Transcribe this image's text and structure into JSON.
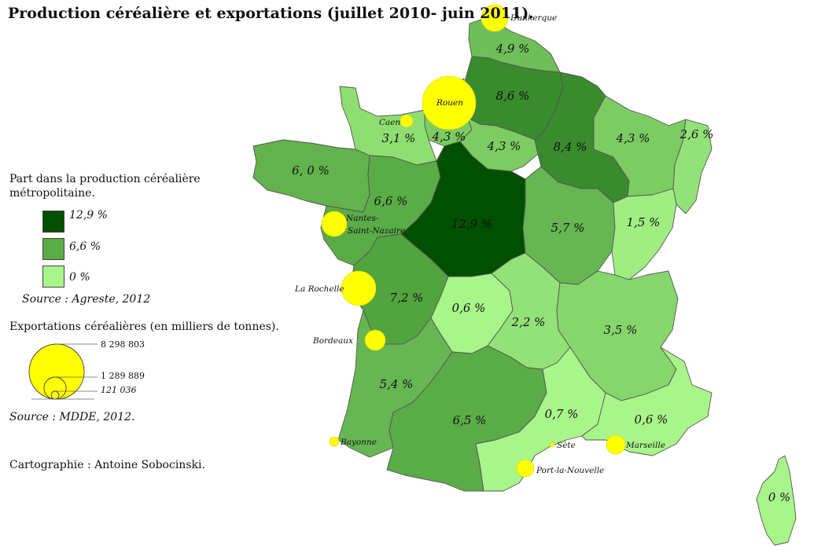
{
  "title": "Production céréalière et exportations (juillet 2010- juin 2011).",
  "legend": {
    "production_title_line1": "Part dans la production céréalière",
    "production_title_line2": "métropolitaine.",
    "classes": [
      {
        "label": "12,9 %",
        "color": "#005000"
      },
      {
        "label": "6,6 %",
        "color": "#5aac46"
      },
      {
        "label": "0 %",
        "color": "#a8f58a"
      }
    ],
    "production_source": "Source : Agreste, 2012",
    "exports_title": "Exportations céréalières (en milliers de tonnes).",
    "circle_values": [
      "8 298 803",
      "1 289 889",
      "121 036"
    ],
    "exports_source": "Source : MDDE, 2012.",
    "credit": "Cartographie : Antoine Sobocinski."
  },
  "regions": [
    {
      "name": "Nord-Pas-de-Calais",
      "label": "4,9 %",
      "color": "#6fbf58"
    },
    {
      "name": "Picardie",
      "label": "8,6 %",
      "color": "#3a8a2e"
    },
    {
      "name": "Haute-Normandie",
      "label": "4,3 %",
      "color": "#7ccc62"
    },
    {
      "name": "Basse-Normandie",
      "label": "3,1 %",
      "color": "#8ede72"
    },
    {
      "name": "Bretagne",
      "label": "6, 0 %",
      "color": "#62b24e"
    },
    {
      "name": "Pays de la Loire",
      "label": "6,6 %",
      "color": "#5aac46"
    },
    {
      "name": "Centre",
      "label": "12,9 %",
      "color": "#005000"
    },
    {
      "name": "Ile-de-France",
      "label": "4,3 %",
      "color": "#7ccc62"
    },
    {
      "name": "Champagne-Ardenne",
      "label": "8,4 %",
      "color": "#3a8a2e"
    },
    {
      "name": "Lorraine",
      "label": "4,3 %",
      "color": "#7ccc62"
    },
    {
      "name": "Alsace",
      "label": "2,6 %",
      "color": "#93e277"
    },
    {
      "name": "Bourgogne",
      "label": "5,7 %",
      "color": "#66b652"
    },
    {
      "name": "Franche-Comté",
      "label": "1,5 %",
      "color": "#a0ee82"
    },
    {
      "name": "Poitou-Charentes",
      "label": "7,2 %",
      "color": "#52a43e"
    },
    {
      "name": "Limousin",
      "label": "0,6 %",
      "color": "#a8f58a"
    },
    {
      "name": "Auvergne",
      "label": "2,2 %",
      "color": "#93e277"
    },
    {
      "name": "Rhône-Alpes",
      "label": "3,5 %",
      "color": "#86d66b"
    },
    {
      "name": "Aquitaine",
      "label": "5,4 %",
      "color": "#66b652"
    },
    {
      "name": "Midi-Pyrénées",
      "label": "6,5 %",
      "color": "#5aac46"
    },
    {
      "name": "Languedoc-Roussillon",
      "label": "0,7 %",
      "color": "#a8f58a"
    },
    {
      "name": "PACA",
      "label": "0,6 %",
      "color": "#a8f58a"
    },
    {
      "name": "Corse",
      "label": "0 %",
      "color": "#a8f58a"
    }
  ],
  "ports": [
    {
      "name": "Dunkerque"
    },
    {
      "name": "Rouen"
    },
    {
      "name": "Caen"
    },
    {
      "name": "Nantes-"
    },
    {
      "name": "Saint-Nazaire"
    },
    {
      "name": "La Rochelle"
    },
    {
      "name": "Bordeaux"
    },
    {
      "name": "Bayonne"
    },
    {
      "name": "Sète"
    },
    {
      "name": "Port-la-Nouvelle"
    },
    {
      "name": "Marseille"
    }
  ]
}
